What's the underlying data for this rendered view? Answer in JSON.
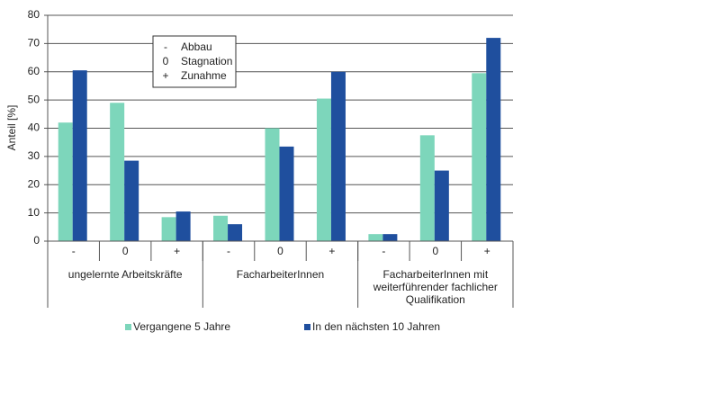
{
  "chart_data": {
    "type": "bar",
    "y_label": "Anteil [%]",
    "categories": [
      "-",
      "0",
      "+",
      "-",
      "0",
      "+",
      "-",
      "0",
      "+"
    ],
    "groups": [
      "ungelernte Arbeitskräfte",
      "FacharbeiterInnen",
      "FacharbeiterInnen mit weiterführender fachlicher Qualifikation"
    ],
    "series": [
      {
        "name": "Vergangene 5 Jahre",
        "color": "#7dd6bb",
        "values": [
          42,
          49,
          8.5,
          9,
          40,
          50.5,
          2.5,
          37.5,
          59.5
        ]
      },
      {
        "name": "In den nächsten 10 Jahren",
        "color": "#1f4f9e",
        "values": [
          60.5,
          28.5,
          10.5,
          6,
          33.5,
          60,
          2.5,
          25,
          72
        ]
      }
    ],
    "ylim": [
      0,
      80
    ],
    "yticks": [
      0,
      10,
      20,
      30,
      40,
      50,
      60,
      70,
      80
    ],
    "grid": true,
    "annotation": [
      {
        "symbol": "-",
        "label": "Abbau"
      },
      {
        "symbol": "0",
        "label": "Stagnation"
      },
      {
        "symbol": "+",
        "label": "Zunahme"
      }
    ]
  }
}
